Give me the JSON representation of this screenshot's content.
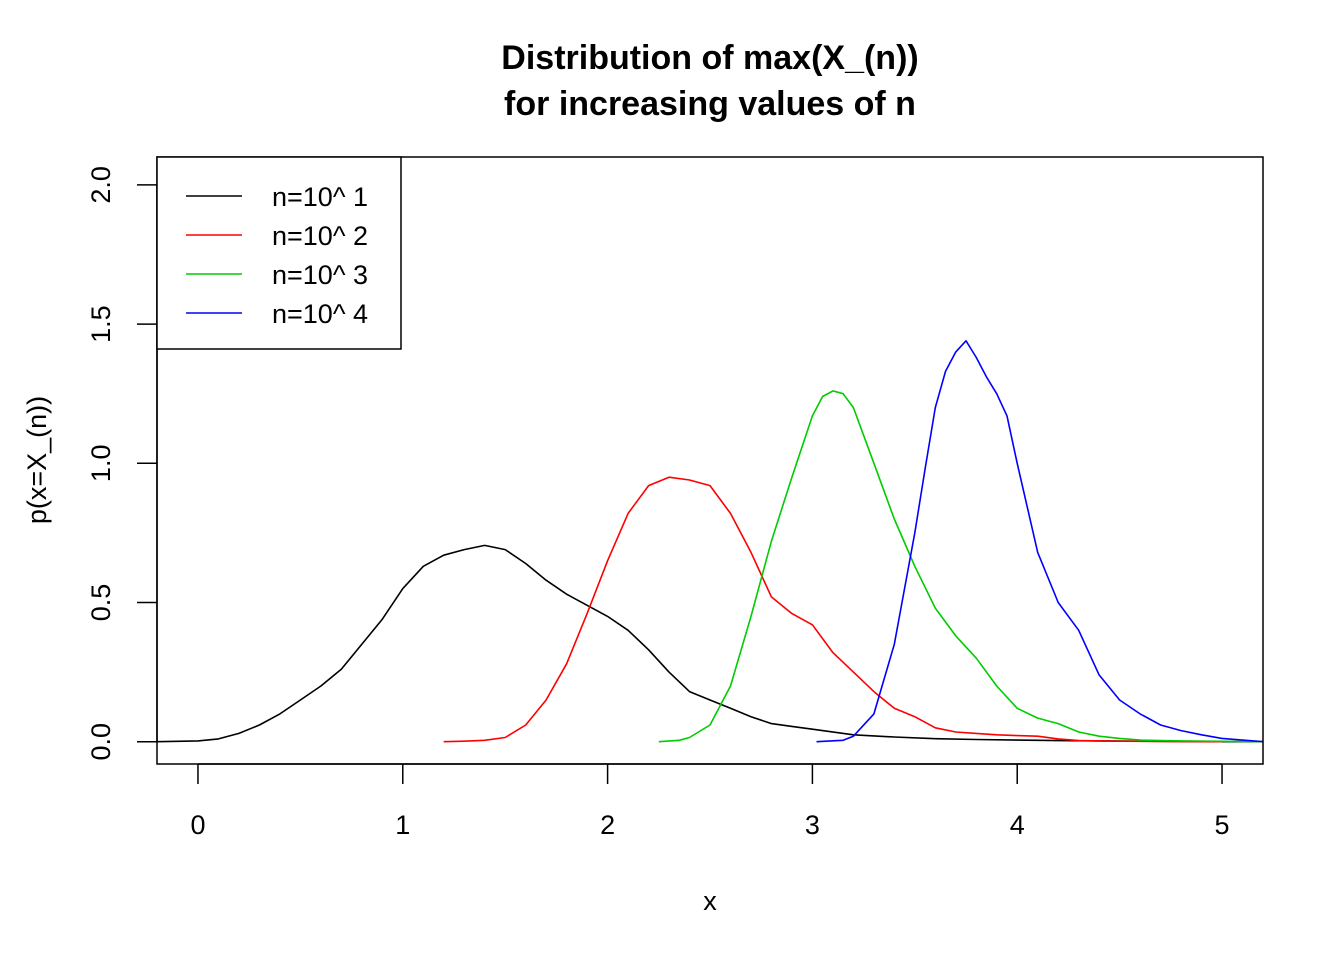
{
  "chart_data": {
    "type": "line",
    "title": [
      "Distribution of max(X_(n))",
      "for increasing values of n"
    ],
    "xlabel": "x",
    "ylabel": "p(x=X_(n))",
    "xlim": [
      -0.2,
      5.2
    ],
    "ylim": [
      -0.08,
      2.1
    ],
    "xticks": [
      0,
      1,
      2,
      3,
      4,
      5
    ],
    "xtick_labels": [
      "0",
      "1",
      "2",
      "3",
      "4",
      "5"
    ],
    "yticks": [
      0.0,
      0.5,
      1.0,
      1.5,
      2.0
    ],
    "ytick_labels": [
      "0.0",
      "0.5",
      "1.0",
      "1.5",
      "2.0"
    ],
    "grid": false,
    "legend_position": "top-left",
    "series": [
      {
        "name": "n=10^ 1",
        "color": "#000000",
        "x": [
          -0.2,
          0.0,
          0.1,
          0.2,
          0.3,
          0.4,
          0.5,
          0.6,
          0.7,
          0.8,
          0.9,
          1.0,
          1.1,
          1.2,
          1.3,
          1.4,
          1.5,
          1.6,
          1.7,
          1.8,
          1.9,
          2.0,
          2.1,
          2.2,
          2.3,
          2.4,
          2.5,
          2.6,
          2.7,
          2.8,
          2.9,
          3.0,
          3.2,
          3.4,
          3.6,
          3.8,
          4.0,
          4.2,
          4.4,
          4.6,
          4.8,
          5.0,
          5.2
        ],
        "y": [
          0.0,
          0.003,
          0.01,
          0.03,
          0.06,
          0.1,
          0.15,
          0.2,
          0.26,
          0.35,
          0.44,
          0.55,
          0.63,
          0.67,
          0.69,
          0.705,
          0.69,
          0.64,
          0.58,
          0.53,
          0.49,
          0.45,
          0.4,
          0.33,
          0.25,
          0.18,
          0.15,
          0.12,
          0.09,
          0.065,
          0.055,
          0.045,
          0.025,
          0.017,
          0.011,
          0.008,
          0.006,
          0.004,
          0.003,
          0.002,
          0.001,
          0.0,
          0.0
        ]
      },
      {
        "name": "n=10^ 2",
        "color": "#ff0000",
        "x": [
          1.2,
          1.3,
          1.4,
          1.5,
          1.6,
          1.7,
          1.8,
          1.9,
          2.0,
          2.1,
          2.2,
          2.3,
          2.4,
          2.5,
          2.6,
          2.7,
          2.8,
          2.9,
          3.0,
          3.1,
          3.2,
          3.3,
          3.4,
          3.5,
          3.6,
          3.7,
          3.8,
          3.9,
          4.0,
          4.1,
          4.2,
          4.3,
          4.5,
          4.7,
          5.0
        ],
        "y": [
          0.0,
          0.002,
          0.005,
          0.015,
          0.06,
          0.15,
          0.28,
          0.46,
          0.65,
          0.82,
          0.92,
          0.95,
          0.94,
          0.92,
          0.82,
          0.68,
          0.52,
          0.46,
          0.42,
          0.32,
          0.25,
          0.18,
          0.12,
          0.09,
          0.05,
          0.035,
          0.03,
          0.025,
          0.022,
          0.02,
          0.01,
          0.004,
          0.002,
          0.001,
          0.0
        ]
      },
      {
        "name": "n=10^ 3",
        "color": "#00cc00",
        "x": [
          2.25,
          2.35,
          2.4,
          2.5,
          2.6,
          2.7,
          2.8,
          2.9,
          3.0,
          3.05,
          3.1,
          3.15,
          3.2,
          3.3,
          3.4,
          3.5,
          3.6,
          3.7,
          3.8,
          3.9,
          4.0,
          4.1,
          4.2,
          4.3,
          4.4,
          4.5,
          4.6,
          4.8,
          5.2
        ],
        "y": [
          0.0,
          0.005,
          0.015,
          0.06,
          0.2,
          0.45,
          0.72,
          0.95,
          1.17,
          1.24,
          1.26,
          1.25,
          1.2,
          1.0,
          0.8,
          0.63,
          0.48,
          0.38,
          0.3,
          0.2,
          0.12,
          0.085,
          0.065,
          0.035,
          0.02,
          0.012,
          0.006,
          0.003,
          0.0
        ]
      },
      {
        "name": "n=10^ 4",
        "color": "#0000ff",
        "x": [
          3.02,
          3.15,
          3.2,
          3.3,
          3.4,
          3.5,
          3.55,
          3.6,
          3.65,
          3.7,
          3.75,
          3.8,
          3.85,
          3.9,
          3.95,
          4.0,
          4.1,
          4.2,
          4.3,
          4.4,
          4.5,
          4.6,
          4.7,
          4.8,
          4.9,
          5.0,
          5.2
        ],
        "y": [
          0.0,
          0.005,
          0.02,
          0.1,
          0.35,
          0.75,
          0.98,
          1.2,
          1.33,
          1.4,
          1.44,
          1.38,
          1.31,
          1.25,
          1.17,
          1.0,
          0.68,
          0.5,
          0.4,
          0.24,
          0.15,
          0.1,
          0.06,
          0.04,
          0.025,
          0.012,
          0.0
        ]
      }
    ]
  }
}
